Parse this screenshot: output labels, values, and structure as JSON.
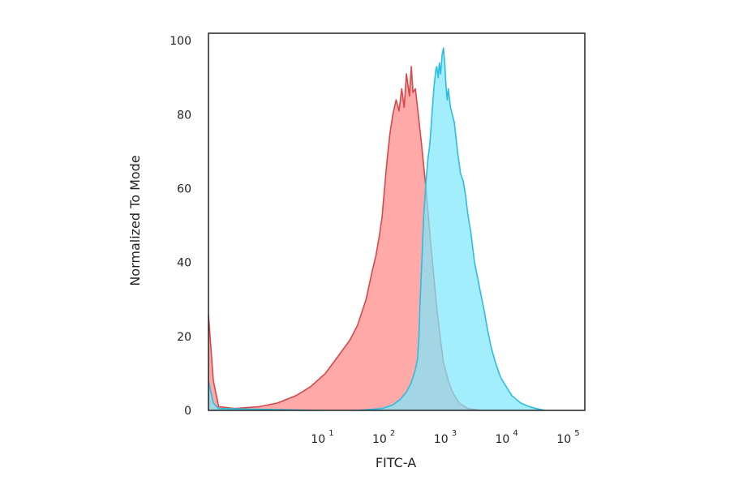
{
  "chart_data": {
    "type": "area",
    "xlabel": "FITC-A",
    "ylabel": "Normalized To Mode",
    "xscale": "log",
    "xlim": [
      0.15,
      200000
    ],
    "ylim": [
      0,
      102
    ],
    "y_ticks": [
      {
        "value": 0,
        "label": "0"
      },
      {
        "value": 20,
        "label": "20"
      },
      {
        "value": 40,
        "label": "40"
      },
      {
        "value": 60,
        "label": "60"
      },
      {
        "value": 80,
        "label": "80"
      },
      {
        "value": 100,
        "label": "100"
      }
    ],
    "x_ticks": [
      {
        "value": 10,
        "base": "10",
        "exponent": "1"
      },
      {
        "value": 100,
        "base": "10",
        "exponent": "2"
      },
      {
        "value": 1000,
        "base": "10",
        "exponent": "3"
      },
      {
        "value": 10000,
        "base": "10",
        "exponent": "4"
      },
      {
        "value": 100000,
        "base": "10",
        "exponent": "5"
      }
    ],
    "grid": false,
    "series": [
      {
        "fill": "#ff9a9a",
        "stroke": "#d94848",
        "points": [
          [
            0.15,
            26
          ],
          [
            0.18,
            8
          ],
          [
            0.22,
            1
          ],
          [
            0.4,
            0.5
          ],
          [
            1,
            1
          ],
          [
            2,
            2
          ],
          [
            4,
            4
          ],
          [
            7,
            6.5
          ],
          [
            12,
            10
          ],
          [
            20,
            15
          ],
          [
            30,
            19
          ],
          [
            40,
            23
          ],
          [
            55,
            30
          ],
          [
            70,
            38
          ],
          [
            80,
            42
          ],
          [
            90,
            47
          ],
          [
            100,
            52
          ],
          [
            110,
            60
          ],
          [
            120,
            67
          ],
          [
            135,
            75
          ],
          [
            150,
            80
          ],
          [
            170,
            84
          ],
          [
            190,
            81
          ],
          [
            210,
            87
          ],
          [
            230,
            82
          ],
          [
            250,
            91
          ],
          [
            280,
            85
          ],
          [
            300,
            93
          ],
          [
            320,
            86
          ],
          [
            350,
            87
          ],
          [
            390,
            80
          ],
          [
            440,
            72
          ],
          [
            520,
            60
          ],
          [
            600,
            48
          ],
          [
            700,
            36
          ],
          [
            800,
            26
          ],
          [
            900,
            19
          ],
          [
            1000,
            13
          ],
          [
            1200,
            8
          ],
          [
            1400,
            5
          ],
          [
            1800,
            2
          ],
          [
            2500,
            0.5
          ],
          [
            4000,
            0
          ]
        ]
      },
      {
        "fill": "#80e8fb",
        "stroke": "#2cbde0",
        "points": [
          [
            0.15,
            8
          ],
          [
            0.18,
            2
          ],
          [
            0.22,
            0.5
          ],
          [
            10,
            0
          ],
          [
            40,
            0
          ],
          [
            100,
            0.5
          ],
          [
            150,
            1.5
          ],
          [
            200,
            3
          ],
          [
            250,
            5
          ],
          [
            300,
            7.5
          ],
          [
            350,
            11
          ],
          [
            380,
            14
          ],
          [
            400,
            20
          ],
          [
            420,
            30
          ],
          [
            450,
            42
          ],
          [
            480,
            53
          ],
          [
            520,
            62
          ],
          [
            560,
            68
          ],
          [
            600,
            72
          ],
          [
            650,
            80
          ],
          [
            700,
            87
          ],
          [
            750,
            92
          ],
          [
            780,
            93
          ],
          [
            820,
            90
          ],
          [
            860,
            94
          ],
          [
            900,
            91
          ],
          [
            950,
            96
          ],
          [
            1000,
            98
          ],
          [
            1050,
            94
          ],
          [
            1100,
            88
          ],
          [
            1150,
            84
          ],
          [
            1200,
            87
          ],
          [
            1300,
            82
          ],
          [
            1500,
            78
          ],
          [
            1700,
            70
          ],
          [
            1900,
            64
          ],
          [
            2100,
            62
          ],
          [
            2300,
            58
          ],
          [
            2500,
            53
          ],
          [
            2800,
            48
          ],
          [
            3200,
            40
          ],
          [
            3600,
            36
          ],
          [
            4000,
            32
          ],
          [
            4600,
            27
          ],
          [
            5200,
            22
          ],
          [
            6000,
            17
          ],
          [
            7000,
            13
          ],
          [
            8500,
            9
          ],
          [
            10000,
            7
          ],
          [
            13000,
            4
          ],
          [
            18000,
            2
          ],
          [
            25000,
            1
          ],
          [
            32000,
            0.5
          ],
          [
            45000,
            0
          ]
        ]
      }
    ]
  }
}
